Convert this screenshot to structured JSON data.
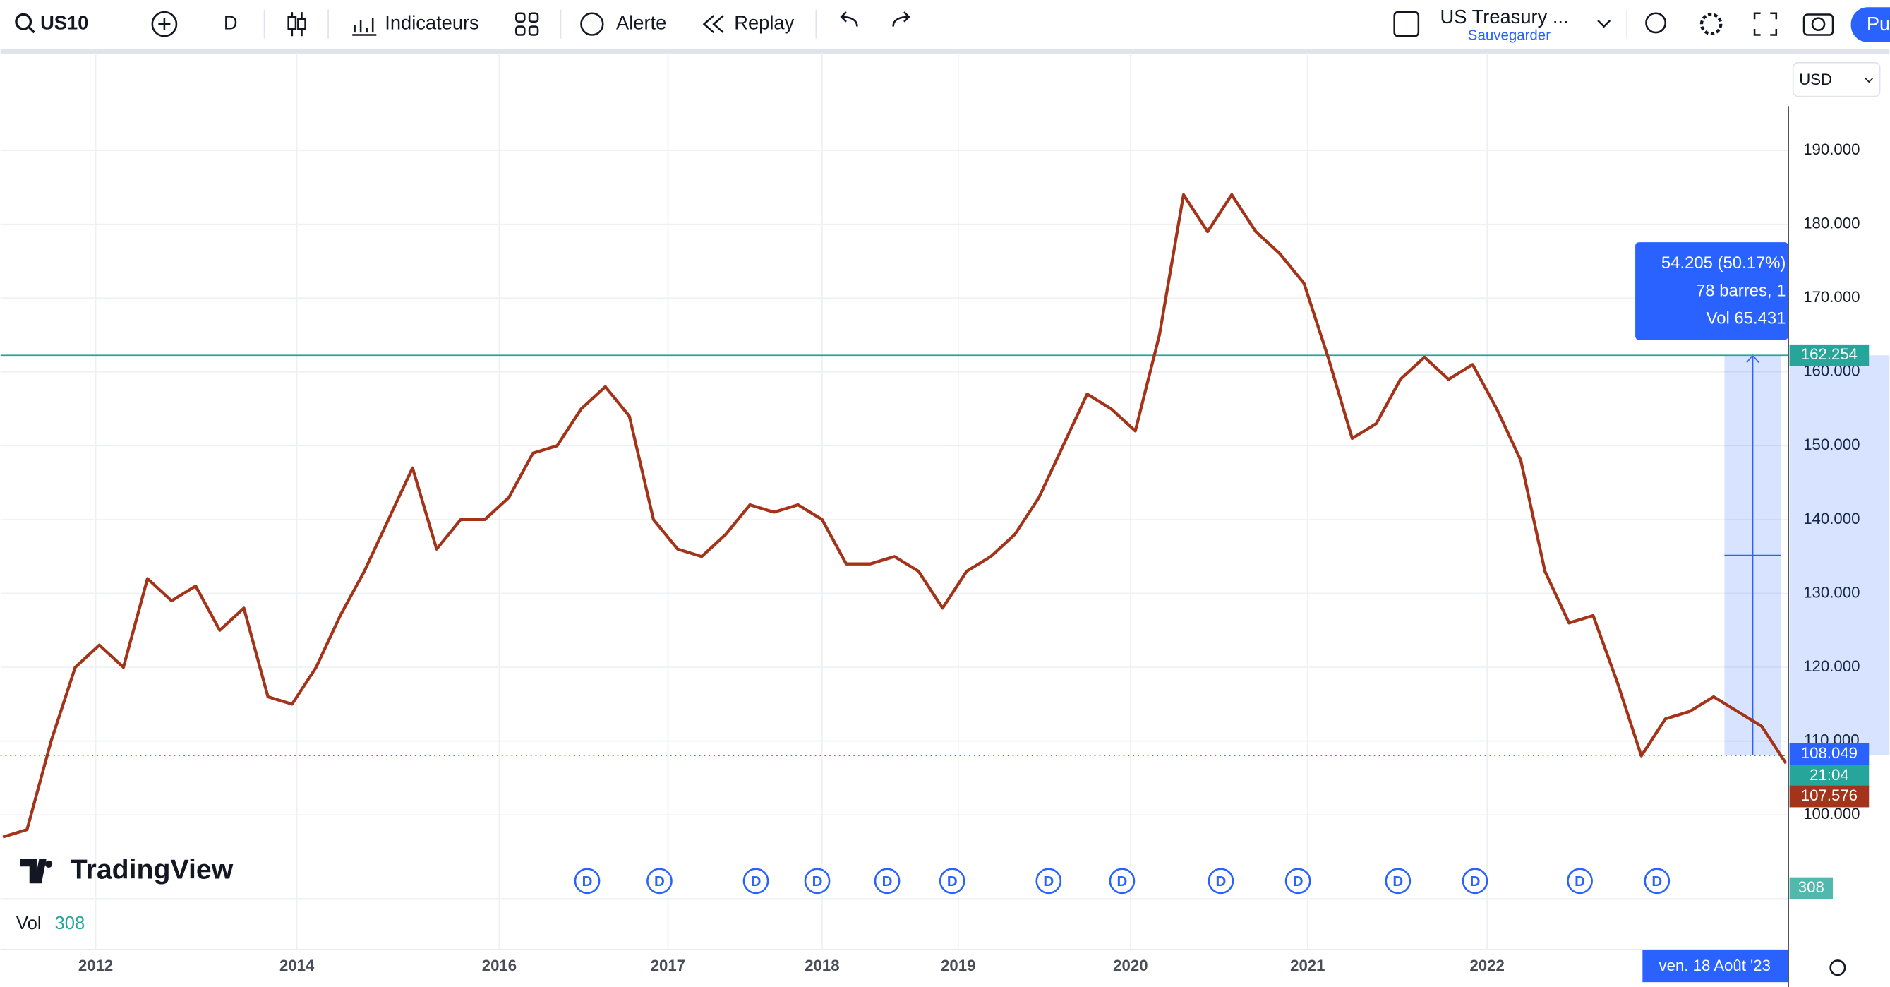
{
  "toolbar": {
    "symbol": "US10",
    "interval": "D",
    "indicators": "Indicateurs",
    "alert": "Alerte",
    "replay": "Replay",
    "layout_name": "US Treasury ...",
    "save": "Sauvegarder",
    "publish": "Pu",
    "currency": "USD"
  },
  "chart_data": {
    "type": "line",
    "title": "TradingView",
    "x": [
      0,
      1,
      2,
      3,
      4,
      5,
      6,
      7,
      8,
      9,
      10,
      11,
      12,
      13,
      14,
      15,
      16,
      17,
      18,
      19,
      20,
      21,
      22,
      23,
      24,
      25,
      26,
      27,
      28,
      29,
      30,
      31,
      32,
      33,
      34,
      35,
      36,
      37,
      38,
      39,
      40,
      41,
      42,
      43,
      44,
      45,
      46,
      47,
      48,
      49,
      50,
      51,
      52,
      53,
      54,
      55,
      56,
      57,
      58,
      59,
      60,
      61,
      62,
      63,
      64,
      65,
      66,
      67,
      68,
      69,
      70,
      71,
      72,
      73,
      74
    ],
    "series": [
      {
        "color": "#a3341a",
        "values": [
          97,
          98,
          110,
          120,
          123,
          120,
          132,
          129,
          131,
          125,
          128,
          116,
          115,
          120,
          127,
          133,
          140,
          147,
          136,
          140,
          140,
          143,
          149,
          150,
          155,
          158,
          154,
          140,
          136,
          135,
          138,
          142,
          141,
          142,
          140,
          134,
          134,
          135,
          133,
          128,
          133,
          135,
          138,
          143,
          150,
          157,
          155,
          152,
          165,
          184,
          179,
          184,
          179,
          176,
          172,
          162,
          151,
          153,
          159,
          162,
          159,
          161,
          155,
          148,
          133,
          126,
          127,
          118,
          108,
          113,
          114,
          116,
          114,
          112,
          107
        ]
      }
    ],
    "xlim": [
      0,
      74
    ],
    "xticks": [
      {
        "value": 3.85,
        "label": "2012"
      },
      {
        "value": 12.2,
        "label": "2014"
      },
      {
        "value": 20.6,
        "label": "2016"
      },
      {
        "value": 27.6,
        "label": "2017"
      },
      {
        "value": 34,
        "label": "2018"
      },
      {
        "value": 39.65,
        "label": "2019"
      },
      {
        "value": 46.8,
        "label": "2020"
      },
      {
        "value": 54.15,
        "label": "2021"
      },
      {
        "value": 61.6,
        "label": "2022"
      }
    ],
    "ylim": [
      88.6,
      203.2
    ],
    "yticks": [
      {
        "value": 100,
        "label": "100.000"
      },
      {
        "value": 110,
        "label": "110.000"
      },
      {
        "value": 120,
        "label": "120.000"
      },
      {
        "value": 130,
        "label": "130.000"
      },
      {
        "value": 140,
        "label": "140.000"
      },
      {
        "value": 150,
        "label": "150.000"
      },
      {
        "value": 160,
        "label": "160.000"
      },
      {
        "value": 170,
        "label": "170.000"
      },
      {
        "value": 180,
        "label": "180.000"
      },
      {
        "value": 190,
        "label": "190.000"
      }
    ],
    "grid": true,
    "price_line": {
      "value": 162.254,
      "label": "162.254"
    },
    "last_price": {
      "value": 108.049,
      "label": "108.049"
    },
    "countdown": "21:04",
    "prev_close": {
      "value": 107.576,
      "label": "107.576"
    },
    "measure": {
      "from": 108.049,
      "to": 162.254,
      "x_from": 71.45,
      "x_to": 73.8,
      "change_label": "54.205 (50.17%)",
      "bars_label": "78 barres, 1",
      "volume_label": "Vol 65.431"
    },
    "dividends": [
      {
        "x": 24.25,
        "label": "D"
      },
      {
        "x": 27.25,
        "label": "D"
      },
      {
        "x": 31.25,
        "label": "D"
      },
      {
        "x": 33.8,
        "label": "D"
      },
      {
        "x": 36.7,
        "label": "D"
      },
      {
        "x": 39.4,
        "label": "D"
      },
      {
        "x": 43.4,
        "label": "D"
      },
      {
        "x": 46.45,
        "label": "D"
      },
      {
        "x": 50.55,
        "label": "D"
      },
      {
        "x": 53.75,
        "label": "D"
      },
      {
        "x": 57.9,
        "label": "D"
      },
      {
        "x": 61.1,
        "label": "D"
      },
      {
        "x": 65.45,
        "label": "D"
      },
      {
        "x": 68.65,
        "label": "D"
      }
    ],
    "cursor_date": "ven. 18 Août '23"
  },
  "volume_pane": {
    "label": "Vol",
    "value": 308,
    "axis_label": "308"
  }
}
